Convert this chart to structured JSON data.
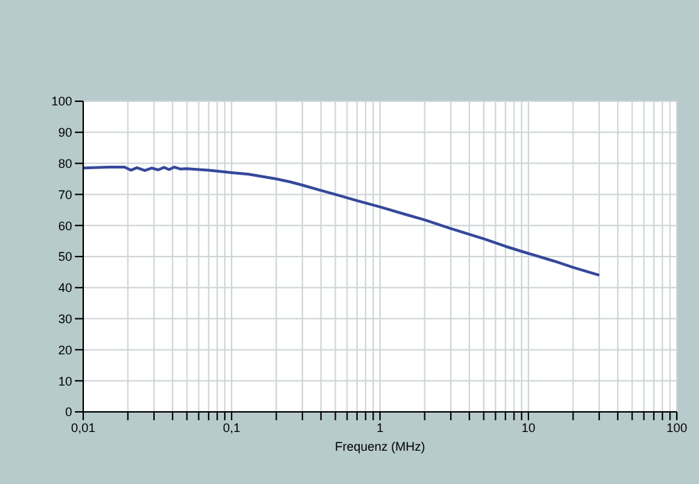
{
  "chart_data": {
    "type": "line",
    "xlabel": "Frequenz (MHz)",
    "log": "x",
    "grid": true,
    "legend": false,
    "marker": "none",
    "line_style": "solid",
    "x": [
      0.01,
      0.015,
      0.019,
      0.021,
      0.023,
      0.026,
      0.029,
      0.032,
      0.035,
      0.038,
      0.041,
      0.045,
      0.05,
      0.06,
      0.07,
      0.08,
      0.1,
      0.13,
      0.16,
      0.2,
      0.25,
      0.3,
      0.4,
      0.5,
      0.7,
      1,
      1.5,
      2,
      3,
      5,
      7,
      10,
      15,
      20,
      30
    ],
    "series": [
      {
        "color": "#34489a",
        "values": [
          78.5,
          78.8,
          78.8,
          77.8,
          78.6,
          77.7,
          78.5,
          77.9,
          78.7,
          78,
          78.8,
          78.2,
          78.3,
          78,
          77.8,
          77.5,
          77,
          76.5,
          75.8,
          75,
          74,
          73,
          71.3,
          70,
          68,
          66,
          63.5,
          61.8,
          59,
          55.7,
          53.3,
          51,
          48.5,
          46.5,
          44
        ]
      }
    ],
    "xlim": [
      0.01,
      100
    ],
    "xticks": [
      {
        "value": 0.01,
        "label": "0,01"
      },
      {
        "value": 0.02,
        "label": null
      },
      {
        "value": 0.03,
        "label": null
      },
      {
        "value": 0.04,
        "label": null
      },
      {
        "value": 0.05,
        "label": null
      },
      {
        "value": 0.06,
        "label": null
      },
      {
        "value": 0.07,
        "label": null
      },
      {
        "value": 0.08,
        "label": null
      },
      {
        "value": 0.09,
        "label": null
      },
      {
        "value": 0.1,
        "label": "0,1"
      },
      {
        "value": 0.2,
        "label": null
      },
      {
        "value": 0.3,
        "label": null
      },
      {
        "value": 0.4,
        "label": null
      },
      {
        "value": 0.5,
        "label": null
      },
      {
        "value": 0.6,
        "label": null
      },
      {
        "value": 0.7,
        "label": null
      },
      {
        "value": 0.8,
        "label": null
      },
      {
        "value": 0.9,
        "label": null
      },
      1,
      {
        "value": 2,
        "label": null
      },
      {
        "value": 3,
        "label": null
      },
      {
        "value": 4,
        "label": null
      },
      {
        "value": 5,
        "label": null
      },
      {
        "value": 6,
        "label": null
      },
      {
        "value": 7,
        "label": null
      },
      {
        "value": 8,
        "label": null
      },
      {
        "value": 9,
        "label": null
      },
      10,
      {
        "value": 20,
        "label": null
      },
      {
        "value": 30,
        "label": null
      },
      {
        "value": 40,
        "label": null
      },
      {
        "value": 50,
        "label": null
      },
      {
        "value": 60,
        "label": null
      },
      {
        "value": 70,
        "label": null
      },
      {
        "value": 80,
        "label": null
      },
      {
        "value": 90,
        "label": null
      },
      100
    ],
    "ylim": [
      0,
      100
    ],
    "yticks": [
      0,
      10,
      20,
      30,
      40,
      50,
      60,
      70,
      80,
      90,
      100
    ]
  }
}
